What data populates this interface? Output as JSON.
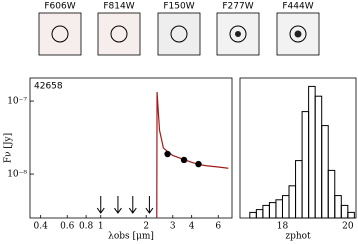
{
  "cutouts": [
    {
      "label": "F606W"
    },
    {
      "label": "F814W"
    },
    {
      "label": "F150W"
    },
    {
      "label": "F277W"
    },
    {
      "label": "F444W"
    }
  ],
  "chart_data": [
    {
      "type": "sed",
      "annotation": "42658",
      "xlabel": "λobs [μm]",
      "ylabel": "Fν [Jy]",
      "xscale": "log",
      "yscale": "log",
      "xlim": [
        0.34,
        7.4
      ],
      "ylim": [
        2.5e-09,
        2.07e-07
      ],
      "xticks": [
        0.4,
        0.6,
        0.8,
        1,
        2,
        3,
        4,
        6
      ],
      "yticks": [
        {
          "value": 1e-08,
          "label": "10⁻⁸"
        },
        {
          "value": 1e-07,
          "label": "10⁻⁷"
        }
      ],
      "series": [
        {
          "type": "line",
          "color": "#a11a1a",
          "x": [
            2.35,
            2.36,
            2.45,
            2.6,
            2.8,
            3,
            3.5,
            4,
            4.5,
            5,
            6,
            7
          ],
          "values": [
            2.5e-09,
            1.33e-07,
            4e-08,
            2.27e-08,
            2e-08,
            1.8e-08,
            1.6e-08,
            1.45e-08,
            1.35e-08,
            1.3e-08,
            1.25e-08,
            1.2e-08
          ]
        },
        {
          "type": "scatter",
          "color": "#000000",
          "x": [
            2.77,
            3.56,
            4.44
          ],
          "values": [
            1.88e-08,
            1.56e-08,
            1.37e-08
          ]
        },
        {
          "type": "upper_limit",
          "color": "#000000",
          "x": [
            1.0,
            1.3,
            1.63,
            2.1
          ],
          "values": [
            5e-09,
            5e-09,
            5e-09,
            5e-09
          ]
        }
      ]
    },
    {
      "type": "histogram",
      "xlabel": "zphot",
      "xlim": [
        16.7,
        20.25
      ],
      "ylim": [
        0,
        100
      ],
      "xticks": [
        18,
        20
      ],
      "color": "#000000",
      "bins": [
        17.0,
        17.2,
        17.4,
        17.6,
        17.8,
        18.0,
        18.2,
        18.4,
        18.6,
        18.8,
        19.0,
        19.2,
        19.4,
        19.6,
        19.8,
        20.0,
        20.2
      ],
      "values": [
        4,
        6,
        9,
        11,
        13,
        16,
        23,
        41,
        76,
        94,
        87,
        66,
        34,
        16,
        9,
        4
      ]
    }
  ]
}
